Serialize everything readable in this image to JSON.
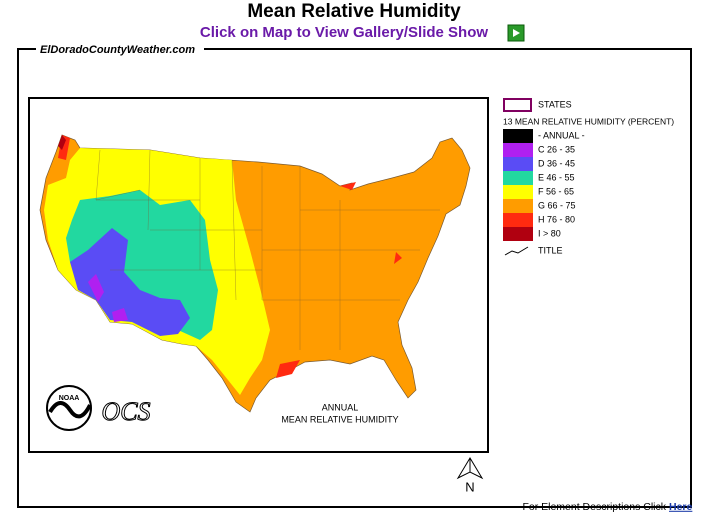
{
  "header": {
    "title": "Mean Relative Humidity",
    "link": "Click on Map to View Gallery/Slide Show"
  },
  "frame_label": "ElDoradoCountyWeather.com",
  "legend": {
    "states": "STATES",
    "heading": "13 MEAN RELATIVE HUMIDITY (PERCENT)",
    "items": [
      {
        "label": "- ANNUAL -",
        "color": "#000000"
      },
      {
        "label": "C 26 - 35",
        "color": "#b020f0"
      },
      {
        "label": "D 36 - 45",
        "color": "#5a4cf5"
      },
      {
        "label": "E 46 - 55",
        "color": "#22d8a0"
      },
      {
        "label": "F 56 - 65",
        "color": "#ffff00"
      },
      {
        "label": "G 66 - 75",
        "color": "#ff9c00"
      },
      {
        "label": "H 76 - 80",
        "color": "#ff2a10"
      },
      {
        "label": "I > 80",
        "color": "#b00010"
      }
    ],
    "title": "TITLE"
  },
  "map": {
    "caption": [
      "ANNUAL",
      "MEAN  RELATIVE HUMIDITY"
    ],
    "noaa": "NOAA",
    "logo": "OCS",
    "north": "N"
  },
  "footer": {
    "text": "For Element Descriptions Click",
    "link": "Here"
  }
}
